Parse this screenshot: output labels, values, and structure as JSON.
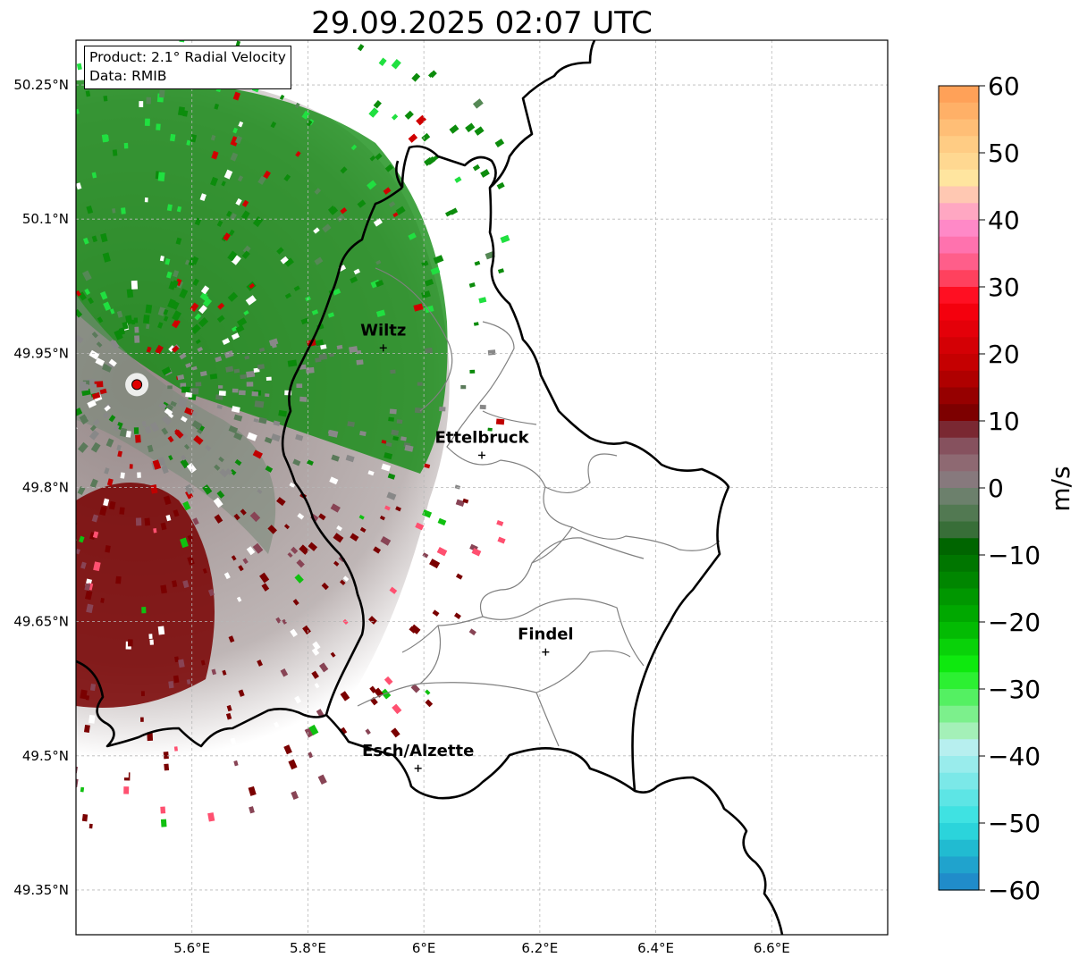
{
  "title": "29.09.2025 02:07 UTC",
  "info_box": {
    "product": "Product: 2.1° Radial Velocity",
    "data_source": "Data: RMIB"
  },
  "lat_ticks": [
    "50.25°N",
    "50.1°N",
    "49.95°N",
    "49.8°N",
    "49.65°N",
    "49.5°N",
    "49.35°N"
  ],
  "lon_ticks": [
    "5.6°E",
    "5.8°E",
    "6°E",
    "6.2°E",
    "6.4°E",
    "6.6°E"
  ],
  "cities": [
    {
      "name": "Wiltz",
      "lon": 5.93,
      "lat": 49.97
    },
    {
      "name": "Ettelbruck",
      "lon": 6.1,
      "lat": 49.85
    },
    {
      "name": "Findel",
      "lon": 6.21,
      "lat": 49.63
    },
    {
      "name": "Esch/Alzette",
      "lon": 5.99,
      "lat": 49.5
    }
  ],
  "radar_site": {
    "name": "radar",
    "lon": 5.505,
    "lat": 49.915
  },
  "colorbar": {
    "unit": "m/s",
    "min": -60,
    "max": 60,
    "ticks": [
      "60",
      "50",
      "40",
      "30",
      "20",
      "10",
      "0",
      "−10",
      "−20",
      "−30",
      "−40",
      "−50",
      "−60"
    ],
    "stops": [
      {
        "v": 60,
        "color": "#ff9a50"
      },
      {
        "v": 52,
        "color": "#ffc880"
      },
      {
        "v": 46,
        "color": "#ffe6a0"
      },
      {
        "v": 42,
        "color": "#ffb0c0"
      },
      {
        "v": 38,
        "color": "#ff80c8"
      },
      {
        "v": 32,
        "color": "#ff5070"
      },
      {
        "v": 28,
        "color": "#ff0010"
      },
      {
        "v": 18,
        "color": "#c00000"
      },
      {
        "v": 10,
        "color": "#700000"
      },
      {
        "v": 8,
        "color": "#804050"
      },
      {
        "v": 3,
        "color": "#907078"
      },
      {
        "v": 0,
        "color": "#808080"
      },
      {
        "v": -2,
        "color": "#608060"
      },
      {
        "v": -6,
        "color": "#407040"
      },
      {
        "v": -8,
        "color": "#006000"
      },
      {
        "v": -20,
        "color": "#00b000"
      },
      {
        "v": -27,
        "color": "#10f010"
      },
      {
        "v": -32,
        "color": "#60f070"
      },
      {
        "v": -36,
        "color": "#a0f0b0"
      },
      {
        "v": -38,
        "color": "#c0f0f0"
      },
      {
        "v": -50,
        "color": "#30e0e0"
      },
      {
        "v": -54,
        "color": "#20b8d0"
      },
      {
        "v": -60,
        "color": "#2080c8"
      }
    ]
  },
  "colors": {
    "border": "#000000",
    "canton": "#808080",
    "grid": "#b8b8b8",
    "radar_marker": "#e00000"
  }
}
